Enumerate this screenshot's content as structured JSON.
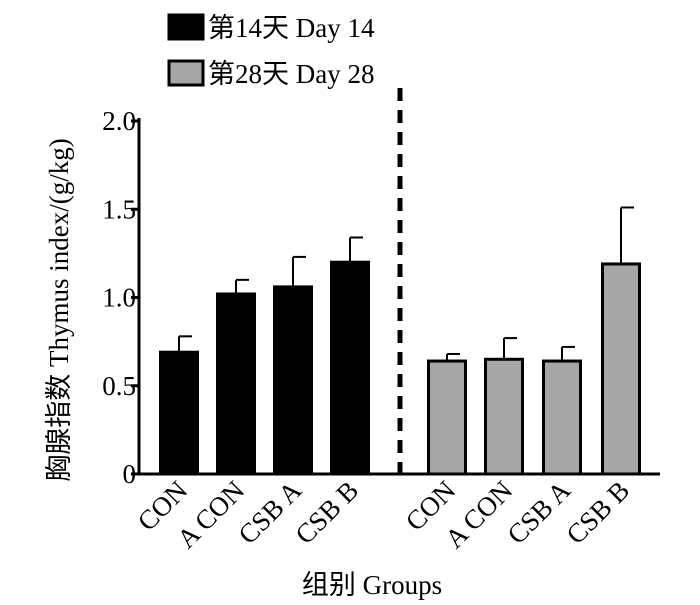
{
  "legend": [
    {
      "label": "第14天 Day 14",
      "color": "#000000"
    },
    {
      "label": "第28天 Day 28",
      "color": "#a6a6a6"
    }
  ],
  "chart_data": {
    "type": "bar",
    "title": "",
    "xlabel": "组别 Groups",
    "ylabel": "胸腺指数  Thymus index/(g/kg)",
    "ylim": [
      0,
      2.0
    ],
    "yticks": [
      "0",
      "0.5",
      "1.0",
      "1.5",
      "2.0"
    ],
    "grid": false,
    "legend_position": "top-left",
    "categories": [
      "CON",
      "A CON",
      "CSB A",
      "CSB B"
    ],
    "series": [
      {
        "name": "第14天 Day 14",
        "color": "#000000",
        "values": [
          0.69,
          1.02,
          1.06,
          1.2
        ],
        "errors": [
          0.09,
          0.08,
          0.17,
          0.14
        ]
      },
      {
        "name": "第28天 Day 28",
        "color": "#a6a6a6",
        "values": [
          0.64,
          0.65,
          0.64,
          1.19
        ],
        "errors": [
          0.04,
          0.12,
          0.08,
          0.32
        ]
      }
    ]
  }
}
